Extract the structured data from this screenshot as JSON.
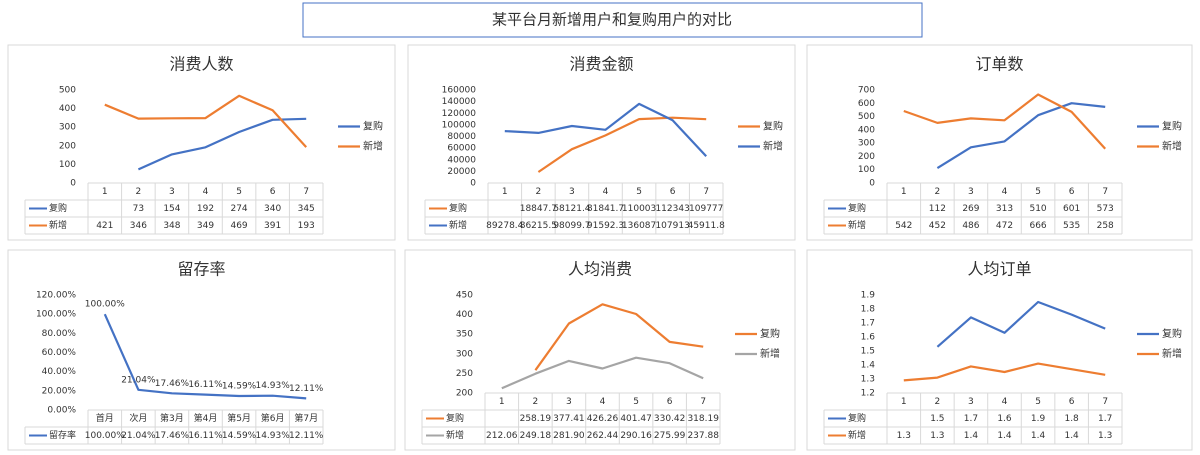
{
  "title": "某平台月新增用户和复购用户的对比",
  "chart_data": [
    {
      "type": "line",
      "title": "消费人数",
      "categories": [
        "1",
        "2",
        "3",
        "4",
        "5",
        "6",
        "7"
      ],
      "ylim": [
        0,
        500
      ],
      "yticks": [
        0,
        100,
        200,
        300,
        400,
        500
      ],
      "legend": "right",
      "series": [
        {
          "name": "复购",
          "color": "#4472c4",
          "values": [
            null,
            73,
            154,
            192,
            274,
            340,
            345
          ]
        },
        {
          "name": "新增",
          "color": "#ed7d31",
          "values": [
            421,
            346,
            348,
            349,
            469,
            391,
            193
          ]
        }
      ]
    },
    {
      "type": "line",
      "title": "消费金额",
      "categories": [
        "1",
        "2",
        "3",
        "4",
        "5",
        "6",
        "7"
      ],
      "ylim": [
        0,
        160000
      ],
      "yticks": [
        0,
        20000,
        40000,
        60000,
        80000,
        100000,
        120000,
        140000,
        160000
      ],
      "legend": "right",
      "series": [
        {
          "name": "复购",
          "color": "#ed7d31",
          "values": [
            null,
            18847.7,
            58121.4,
            81841.7,
            110003,
            112343,
            109777
          ]
        },
        {
          "name": "新增",
          "color": "#4472c4",
          "values": [
            89278.4,
            86215.5,
            98099.7,
            91592.3,
            136087,
            107913,
            45911.8
          ]
        }
      ]
    },
    {
      "type": "line",
      "title": "订单数",
      "categories": [
        "1",
        "2",
        "3",
        "4",
        "5",
        "6",
        "7"
      ],
      "ylim": [
        0,
        700
      ],
      "yticks": [
        0,
        100,
        200,
        300,
        400,
        500,
        600,
        700
      ],
      "legend": "right",
      "series": [
        {
          "name": "复购",
          "color": "#4472c4",
          "values": [
            null,
            112,
            269,
            313,
            510,
            601,
            573
          ]
        },
        {
          "name": "新增",
          "color": "#ed7d31",
          "values": [
            542,
            452,
            486,
            472,
            666,
            535,
            258
          ]
        }
      ]
    },
    {
      "type": "line",
      "title": "留存率",
      "categories": [
        "首月",
        "次月",
        "第3月",
        "第4月",
        "第5月",
        "第6月",
        "第7月"
      ],
      "ylim": [
        0,
        120
      ],
      "yticks": [
        {
          "value": 0,
          "label": "0.00%"
        },
        {
          "value": 20,
          "label": "20.00%"
        },
        {
          "value": 40,
          "label": "40.00%"
        },
        {
          "value": 60,
          "label": "60.00%"
        },
        {
          "value": 80,
          "label": "80.00%"
        },
        {
          "value": 100,
          "label": "100.00%"
        },
        {
          "value": 120,
          "label": "120.00%"
        }
      ],
      "data_labels": true,
      "series": [
        {
          "name": "留存率",
          "color": "#4472c4",
          "values": [
            100,
            21.04,
            17.46,
            16.11,
            14.59,
            14.93,
            12.11
          ],
          "value_labels": [
            "100.00%",
            "21.04%",
            "17.46%",
            "16.11%",
            "14.59%",
            "14.93%",
            "12.11%"
          ]
        }
      ]
    },
    {
      "type": "line",
      "title": "人均消费",
      "categories": [
        "1",
        "2",
        "3",
        "4",
        "5",
        "6",
        "7"
      ],
      "ylim": [
        200,
        450
      ],
      "yticks": [
        200,
        250,
        300,
        350,
        400,
        450
      ],
      "legend": "right",
      "series": [
        {
          "name": "复购",
          "color": "#ed7d31",
          "values": [
            null,
            258.19,
            377.41,
            426.26,
            401.47,
            330.42,
            318.19
          ]
        },
        {
          "name": "新增",
          "color": "#a5a5a5",
          "values": [
            212.06,
            249.18,
            281.9,
            262.44,
            290.16,
            275.99,
            237.88
          ],
          "value_labels": [
            "212.06",
            "249.18",
            "281.90",
            "262.44",
            "290.16",
            "275.99",
            "237.88"
          ]
        }
      ]
    },
    {
      "type": "line",
      "title": "人均订单",
      "categories": [
        "1",
        "2",
        "3",
        "4",
        "5",
        "6",
        "7"
      ],
      "ylim": [
        1.2,
        1.9
      ],
      "yticks": [
        1.2,
        1.3,
        1.4,
        1.5,
        1.6,
        1.7,
        1.8,
        1.9
      ],
      "legend": "right",
      "series": [
        {
          "name": "复购",
          "color": "#4472c4",
          "values": [
            null,
            1.53,
            1.74,
            1.63,
            1.85,
            1.76,
            1.66
          ],
          "value_labels": [
            null,
            "1.5",
            "1.7",
            "1.6",
            "1.9",
            "1.8",
            "1.7"
          ]
        },
        {
          "name": "新增",
          "color": "#ed7d31",
          "values": [
            1.29,
            1.31,
            1.39,
            1.35,
            1.41,
            1.37,
            1.33
          ],
          "value_labels": [
            "1.3",
            "1.3",
            "1.4",
            "1.4",
            "1.4",
            "1.4",
            "1.3"
          ]
        }
      ]
    }
  ]
}
